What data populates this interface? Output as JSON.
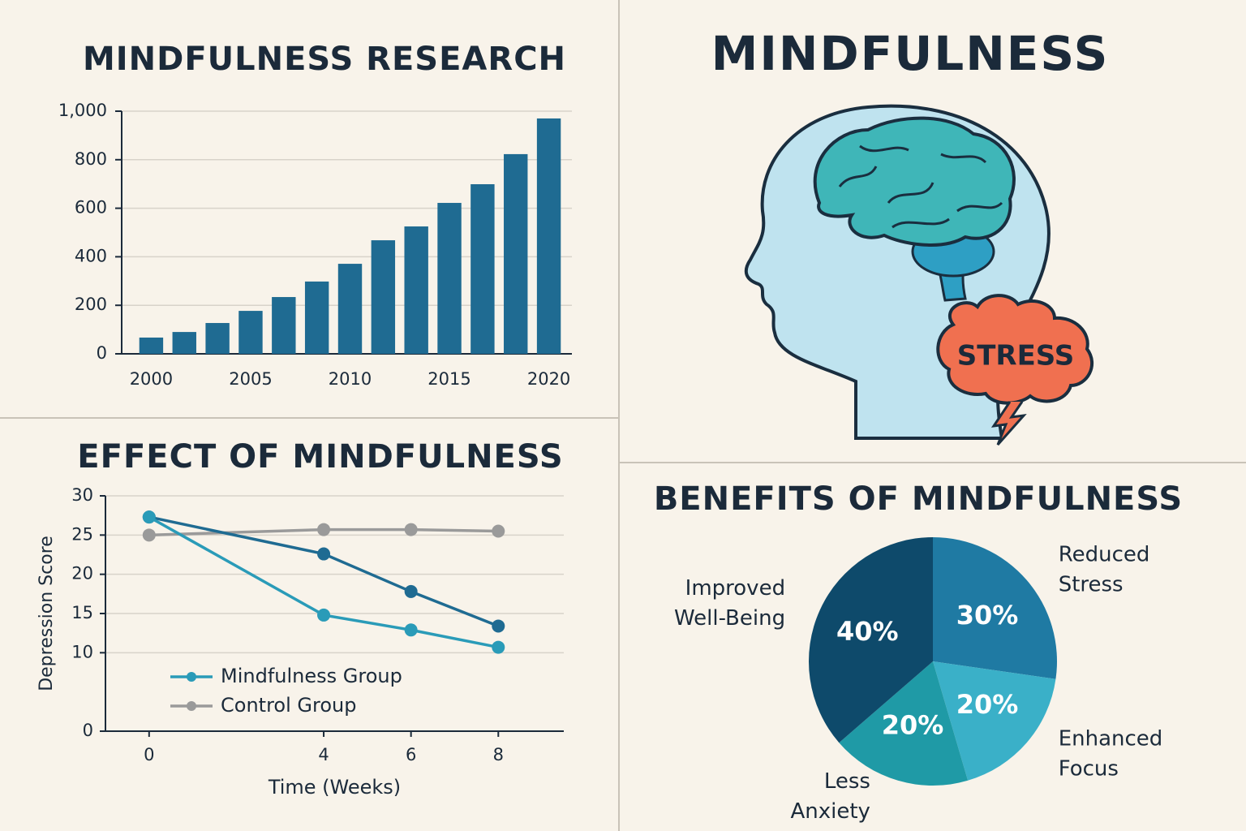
{
  "illustration": {
    "title": "MINDFULNESS",
    "label": "STRESS"
  },
  "chart_data": [
    {
      "type": "bar",
      "title": "MINDFULNESS RESEARCH",
      "categories": [
        "2000",
        null,
        null,
        "2005",
        null,
        null,
        "2010",
        null,
        null,
        "2015",
        null,
        null,
        "2020"
      ],
      "values": [
        67,
        90,
        127,
        177,
        234,
        298,
        371,
        468,
        525,
        622,
        699,
        823,
        970
      ],
      "color": "#1f6b92",
      "ylim": [
        0,
        1000
      ],
      "yticks": [
        0,
        200,
        400,
        600,
        800,
        {
          "value": 1000,
          "label": "1,000"
        }
      ],
      "grid": true
    },
    {
      "type": "line",
      "title": "EFFECT OF MINDFULNESS",
      "xlabel": "Time (Weeks)",
      "ylabel": "Depression Score",
      "x": [
        0,
        4,
        6,
        8
      ],
      "xlim": [
        -1,
        9.5
      ],
      "xticks": [
        0,
        4,
        6,
        8
      ],
      "ylim": [
        0,
        30
      ],
      "yticks": [
        0,
        10,
        15,
        20,
        25,
        30
      ],
      "grid": true,
      "legend": "lower left",
      "series": [
        {
          "name": "Control Group",
          "color": "#9a9a9a",
          "values": [
            25,
            25.7,
            25.7,
            25.5
          ]
        },
        {
          "color": "#1f6b92",
          "values": [
            27.3,
            22.6,
            17.8,
            13.4
          ]
        },
        {
          "name": "Mindfulness Group",
          "color": "#2a9bb8",
          "values": [
            27.3,
            14.8,
            12.9,
            10.7
          ]
        }
      ]
    },
    {
      "type": "pie",
      "title": "BENEFITS OF MINDFULNESS",
      "categories": [
        "Reduced Stress",
        "Enhanced Focus",
        "Less Anxiety",
        "Improved Well-Being"
      ],
      "values": [
        30,
        20,
        20,
        40
      ],
      "value_labels": [
        "30%",
        "20%",
        "20%",
        "40%"
      ],
      "colors": [
        "#1f7aa3",
        "#3ab0c8",
        "#1f9aa6",
        "#0e4a6b"
      ]
    }
  ]
}
